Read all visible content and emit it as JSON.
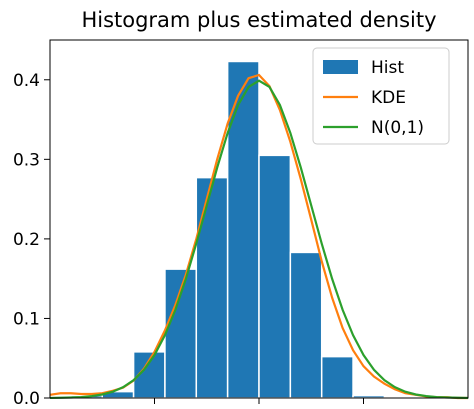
{
  "chart_data": {
    "type": "bar",
    "title": "Histogram plus estimated density",
    "xlabel": "",
    "ylabel": "",
    "ylim": [
      0,
      0.45
    ],
    "xlim": [
      -4.0,
      4.0
    ],
    "yticks": [
      0.0,
      0.1,
      0.2,
      0.3,
      0.4
    ],
    "ytick_labels": [
      "0.0",
      "0.1",
      "0.2",
      "0.3",
      "0.4"
    ],
    "xticks": [
      -2,
      0,
      2
    ],
    "xtick_labels": [],
    "grid": false,
    "legend_position": "top-right",
    "histogram": {
      "name": "Hist",
      "color": "#1f77b4",
      "bin_edges": [
        -3.6,
        -3.0,
        -2.4,
        -1.8,
        -1.2,
        -0.6,
        0.0,
        0.6,
        1.2,
        1.8,
        2.4,
        3.0
      ],
      "values": [
        0.003,
        0.008,
        0.058,
        0.162,
        0.277,
        0.423,
        0.305,
        0.183,
        0.052,
        0.003,
        0.0
      ]
    },
    "series": [
      {
        "name": "KDE",
        "color": "#ff7f0e",
        "x": [
          -4.0,
          -3.8,
          -3.6,
          -3.4,
          -3.2,
          -3.0,
          -2.8,
          -2.6,
          -2.4,
          -2.2,
          -2.0,
          -1.8,
          -1.6,
          -1.4,
          -1.2,
          -1.0,
          -0.8,
          -0.6,
          -0.4,
          -0.2,
          0.0,
          0.2,
          0.4,
          0.6,
          0.8,
          1.0,
          1.2,
          1.4,
          1.6,
          1.8,
          2.0,
          2.2,
          2.4,
          2.6,
          2.8,
          3.0,
          3.2,
          3.4,
          3.6,
          3.8,
          4.0
        ],
        "y": [
          0.004,
          0.006,
          0.006,
          0.005,
          0.005,
          0.006,
          0.009,
          0.013,
          0.022,
          0.037,
          0.058,
          0.085,
          0.117,
          0.155,
          0.2,
          0.25,
          0.3,
          0.345,
          0.38,
          0.402,
          0.406,
          0.392,
          0.362,
          0.322,
          0.275,
          0.224,
          0.172,
          0.126,
          0.088,
          0.06,
          0.04,
          0.027,
          0.018,
          0.011,
          0.006,
          0.004,
          0.002,
          0.001,
          0.001,
          0.0,
          0.0
        ]
      },
      {
        "name": "N(0,1)",
        "color": "#2ca02c",
        "x": [
          -4.0,
          -3.8,
          -3.6,
          -3.4,
          -3.2,
          -3.0,
          -2.8,
          -2.6,
          -2.4,
          -2.2,
          -2.0,
          -1.8,
          -1.6,
          -1.4,
          -1.2,
          -1.0,
          -0.8,
          -0.6,
          -0.4,
          -0.2,
          0.0,
          0.2,
          0.4,
          0.6,
          0.8,
          1.0,
          1.2,
          1.4,
          1.6,
          1.8,
          2.0,
          2.2,
          2.4,
          2.6,
          2.8,
          3.0,
          3.2,
          3.4,
          3.6,
          3.8,
          4.0
        ],
        "y": [
          0.0001,
          0.0003,
          0.0006,
          0.0012,
          0.0024,
          0.0044,
          0.0079,
          0.0136,
          0.0224,
          0.0355,
          0.054,
          0.079,
          0.1109,
          0.1497,
          0.1942,
          0.242,
          0.2897,
          0.3332,
          0.3683,
          0.391,
          0.3989,
          0.391,
          0.3683,
          0.3332,
          0.2897,
          0.242,
          0.1942,
          0.1497,
          0.1109,
          0.079,
          0.054,
          0.0355,
          0.0224,
          0.0136,
          0.0079,
          0.0044,
          0.0024,
          0.0012,
          0.0006,
          0.0003,
          0.0001
        ]
      }
    ]
  }
}
